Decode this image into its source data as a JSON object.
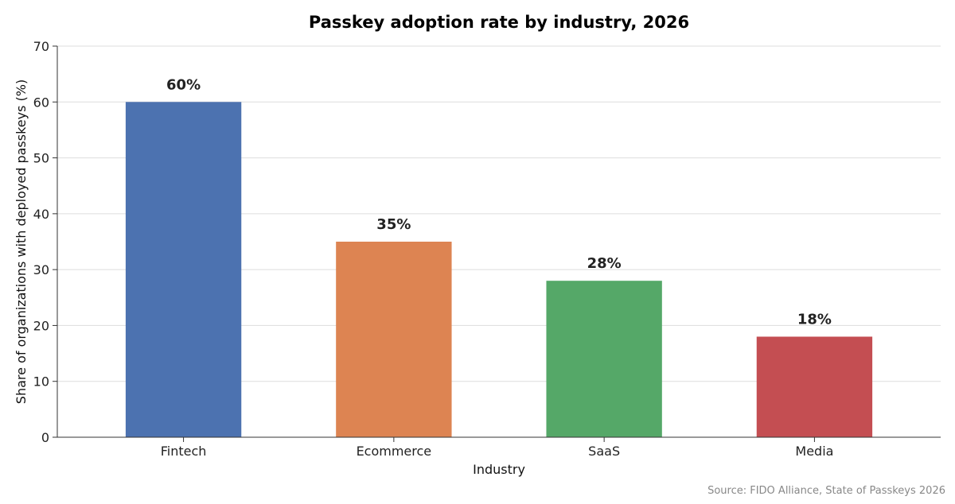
{
  "chart_data": {
    "type": "bar",
    "title": "Passkey adoption rate by industry, 2026",
    "xlabel": "Industry",
    "ylabel": "Share of organizations with deployed passkeys (%)",
    "categories": [
      "Fintech",
      "Ecommerce",
      "SaaS",
      "Media"
    ],
    "values": [
      60,
      35,
      28,
      18
    ],
    "data_labels": [
      "60%",
      "35%",
      "28%",
      "18%"
    ],
    "colors": [
      "#4c72b0",
      "#dd8452",
      "#55a868",
      "#c44e52"
    ],
    "ylim": [
      0,
      70
    ],
    "yticks": [
      0,
      10,
      20,
      30,
      40,
      50,
      60,
      70
    ],
    "grid": true,
    "legend": "none",
    "source": "Source: FIDO Alliance, State of Passkeys 2026"
  }
}
